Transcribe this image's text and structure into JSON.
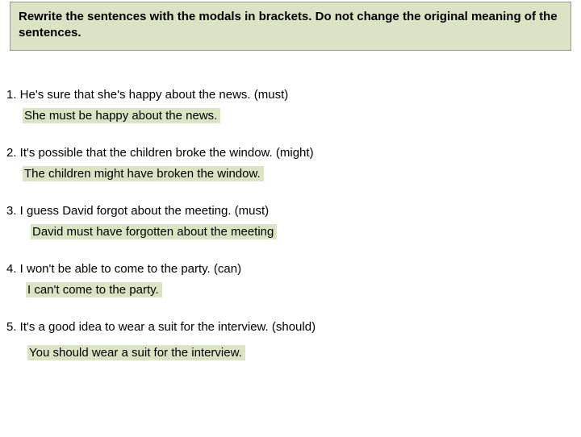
{
  "instruction": "Rewrite the sentences with the modals in brackets. Do not change the original meaning of the sentences.",
  "items": [
    {
      "question": "1. He's sure that she's happy about the news. (must)",
      "answer": "She must be happy about the news."
    },
    {
      "question": "2. It's possible that the children broke the window. (might)",
      "answer": "The children might have broken the window."
    },
    {
      "question": "3. I guess David forgot about the meeting. (must)",
      "answer": "David must have forgotten about the meeting"
    },
    {
      "question": "4. I won't be able to come to the party. (can)",
      "answer": "I can't come to the party."
    },
    {
      "question": "5. It's a good idea to wear a suit for the interview. (should)",
      "answer": "You should wear a suit for the interview."
    }
  ],
  "colors": {
    "highlight_bg": "#dbe3c5",
    "text": "#000000",
    "page_bg": "#ffffff"
  }
}
